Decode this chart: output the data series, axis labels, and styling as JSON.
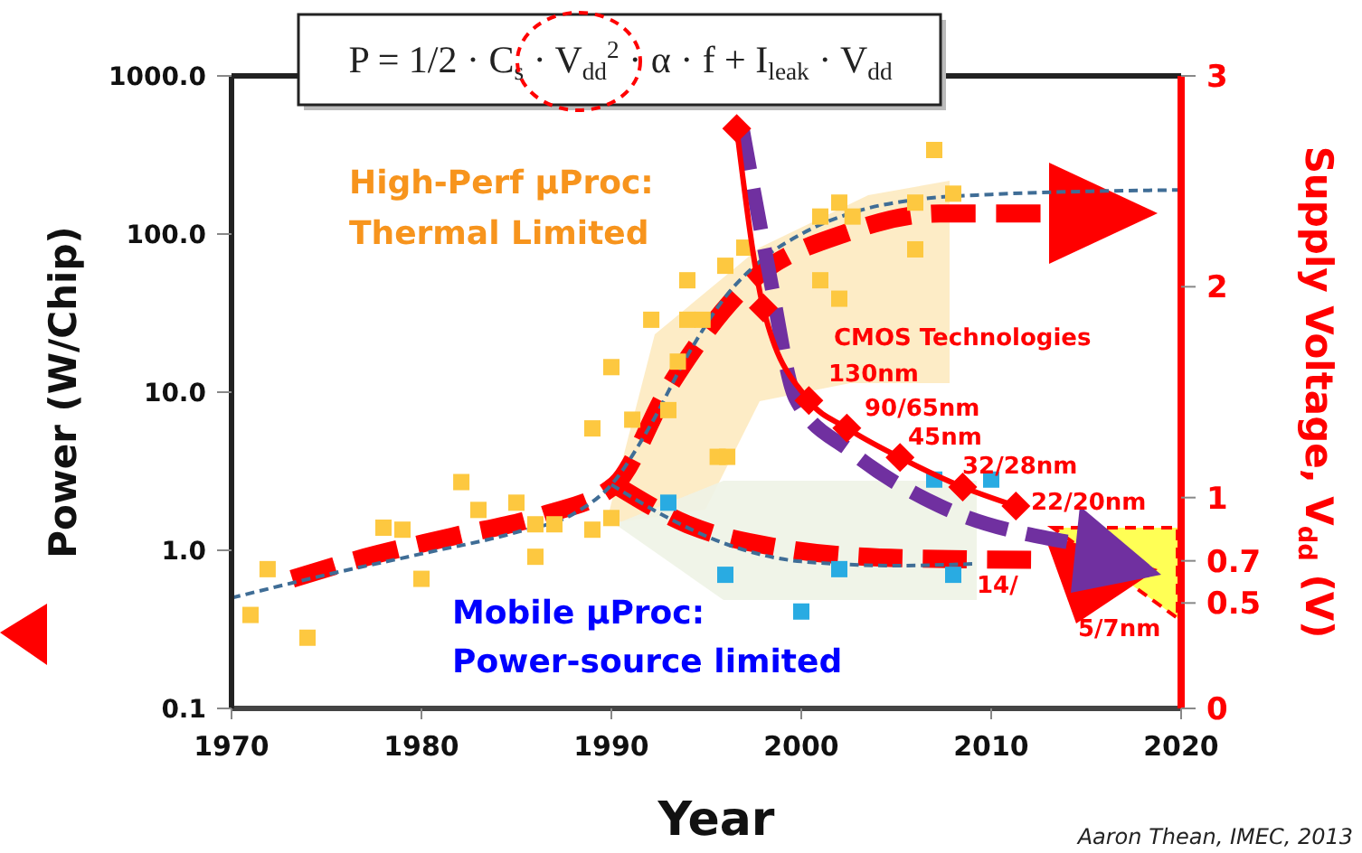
{
  "chart_data": {
    "type": "scatter",
    "xlabel": "Year",
    "ylabel": "Power (W/Chip)",
    "y2label": "Supply Voltage, V$_{dd}$ (V)",
    "xlim": [
      1970,
      2020
    ],
    "xticks": [
      1970,
      1980,
      1990,
      2000,
      2010,
      2020
    ],
    "ylim": [
      0.1,
      1000
    ],
    "yticks": [
      {
        "value": 0.1,
        "label": "0.1"
      },
      {
        "value": 1,
        "label": "1.0"
      },
      {
        "value": 10,
        "label": "10.0"
      },
      {
        "value": 100,
        "label": "100.0"
      },
      {
        "value": 1000,
        "label": "1000.0"
      }
    ],
    "log": "y",
    "y2lim": [
      0,
      3
    ],
    "y2ticks": [
      0,
      0.5,
      0.7,
      1,
      2,
      3
    ],
    "series": [
      {
        "type": "line",
        "color": "#ff0000",
        "line_style": "dashed",
        "marker": "none",
        "x": [
          1973.2,
          1977,
          1981.6,
          1986.4,
          1990.2,
          1993,
          1996.9,
          2002.6,
          2007.3,
          2012.6
        ],
        "values": [
          0.66,
          0.9,
          1.22,
          1.67,
          2.6,
          10.6,
          44.6,
          104,
          135,
          135
        ]
      },
      {
        "type": "line",
        "color": "#ff0000",
        "line_style": "dashed",
        "marker": "none",
        "x": [
          1990.2,
          1994,
          1998.8,
          2005.4,
          2012.1
        ],
        "values": [
          2.6,
          1.46,
          1.04,
          0.89,
          0.87
        ]
      },
      {
        "type": "line",
        "color": "#3f6d96",
        "line_style": "dashed",
        "marker": "none",
        "x": [
          1970,
          1975,
          1980,
          1985,
          1988,
          1990,
          1992,
          1994,
          1996,
          1998,
          2000,
          2003,
          2006,
          2010,
          2020
        ],
        "values": [
          0.5,
          0.7,
          0.95,
          1.3,
          1.7,
          2.6,
          6,
          17,
          40,
          70,
          100,
          140,
          165,
          178,
          190
        ]
      },
      {
        "type": "line",
        "color": "#3f6d96",
        "line_style": "dashed",
        "marker": "none",
        "x": [
          1990,
          1993,
          1996,
          2000,
          2005,
          2009
        ],
        "values": [
          2.6,
          1.6,
          1.1,
          0.85,
          0.8,
          0.82
        ]
      },
      {
        "color": "#fdc840",
        "marker": "square",
        "x": [
          1971,
          1971.9,
          1974,
          1978,
          1979,
          1980,
          1982.1,
          1983,
          1985,
          1986,
          1986,
          1987,
          1989,
          1990,
          1989,
          1990,
          1991.1,
          1993,
          1992.1,
          1994,
          1994,
          1993.5,
          1995.6,
          2007,
          2002,
          2001,
          2006,
          2008,
          2002.7,
          1997,
          1996,
          2001,
          2002,
          2006,
          1994.8,
          1996.1
        ],
        "values": [
          0.39,
          0.76,
          0.28,
          1.39,
          1.35,
          0.66,
          2.7,
          1.8,
          2.0,
          1.46,
          0.91,
          1.46,
          1.35,
          1.6,
          5.9,
          14.4,
          6.7,
          7.7,
          28.7,
          28.7,
          51,
          15.6,
          3.9,
          340,
          158,
          129,
          158,
          180,
          129,
          82,
          63,
          51,
          39,
          80,
          28.7,
          3.9
        ]
      },
      {
        "color": "#29abe2",
        "marker": "square",
        "x": [
          1993,
          2007,
          2010,
          1996,
          2002,
          2008,
          2000
        ],
        "values": [
          2.0,
          2.8,
          2.8,
          0.7,
          0.76,
          0.7,
          0.41
        ]
      },
      {
        "type": "line",
        "axis": "y2",
        "color": "#7030a0",
        "line_style": "dashed",
        "marker": "none",
        "x": [
          1996.9,
          1998.3,
          1999.7,
          2002.6,
          2007.3,
          2014
        ],
        "values": [
          2.75,
          2.07,
          1.47,
          1.22,
          0.96,
          0.79
        ]
      },
      {
        "type": "line",
        "axis": "y2",
        "color": "#ff0000",
        "line_style": "solid",
        "marker": "diamond",
        "x": [
          1996.6,
          1998,
          2000.4,
          2002.4,
          2005.2,
          2008.5,
          2011.3
        ],
        "values": [
          2.75,
          1.9,
          1.46,
          1.33,
          1.19,
          1.05,
          0.96
        ]
      }
    ],
    "annotations": [
      "P = 1/2 · C$_{s}$ · V$_{dd}$$^{2}$ · α · f + I$_{leak}$ · V$_{dd}$",
      "High-Perf μProc:\nThermal Limited",
      "Mobile μProc:\nPower-source limited",
      "CMOS Technologies",
      "130nm",
      "90/65nm",
      "45nm",
      "32/28nm",
      "22/20nm",
      "14/",
      "5/7nm",
      "Aaron Thean, IMEC, 2013"
    ]
  }
}
